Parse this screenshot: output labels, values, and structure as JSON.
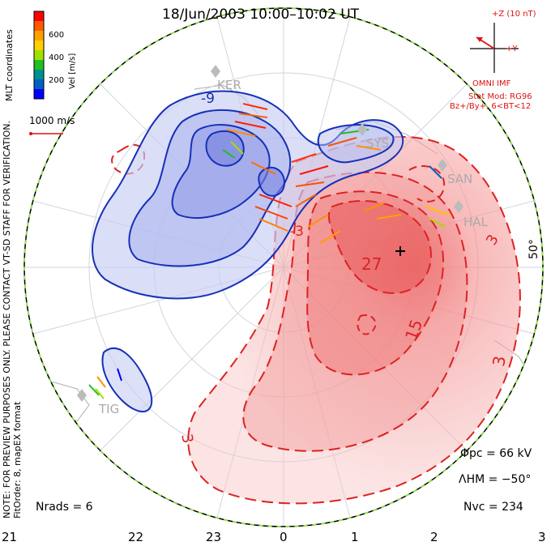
{
  "title": "18/Jun/2003 10:00–10:02 UT",
  "colorbar": {
    "label": "Vel [m/s]",
    "ticks": [
      "600",
      "400",
      "200"
    ],
    "colors": [
      "#ff0000",
      "#ff5a00",
      "#ffa000",
      "#ffd000",
      "#a0e000",
      "#20c020",
      "#009090",
      "#0060c0",
      "#0000ff"
    ]
  },
  "side_label": "MLT coordinates",
  "vector_scale": "1000 m/s",
  "imf": {
    "z_label": "+Z (10 nT)",
    "y_label": "+Y",
    "source": "OMNI IMF",
    "model_line1": "Stat Mod: RG96",
    "model_line2": "Bz+/By+, 6<BT<12"
  },
  "note_line1": "NOTE: FOR PREVIEW PURPOSES ONLY. PLEASE CONTACT VT-SD STAFF FOR VERIFICATION.",
  "note_line2": "FitOrder: 8, mapEX format",
  "stations": [
    "TIG",
    "SYS",
    "SAN",
    "HAL",
    "KER"
  ],
  "lat_label": "50°",
  "contour_labels": [
    "-9",
    "-3",
    "27",
    "15",
    "3",
    "3",
    "3"
  ],
  "mlt_ticks": [
    "21",
    "22",
    "23",
    "0",
    "1",
    "2",
    "3"
  ],
  "stats": {
    "phi_pc": "Φpc = 66 kV",
    "lambda_hm": "ΛHM = −50°",
    "n_vc": "Nvc = 234",
    "n_rads": "Nrads = 6"
  }
}
